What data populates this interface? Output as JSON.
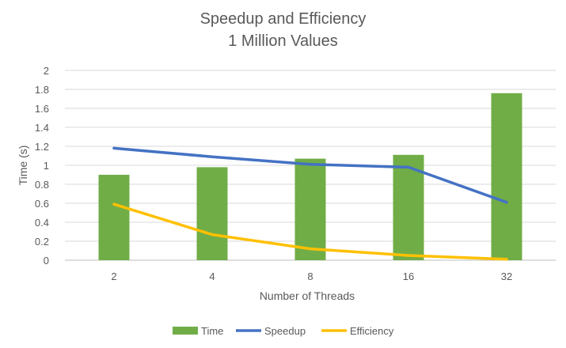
{
  "chart_data": {
    "type": "bar",
    "title": "Speedup and Efficiency",
    "subtitle": "1 Million Values",
    "xlabel": "Number of Threads",
    "ylabel": "Time (s)",
    "categories": [
      "2",
      "4",
      "8",
      "16",
      "32"
    ],
    "ylim": [
      0,
      2
    ],
    "yticks": [
      "0",
      "0.2",
      "0.4",
      "0.6",
      "0.8",
      "1",
      "1.2",
      "1.4",
      "1.6",
      "1.8",
      "2"
    ],
    "grid": true,
    "legend_position": "bottom",
    "series": [
      {
        "name": "Time",
        "kind": "bar",
        "color": "#70ad47",
        "values": [
          0.9,
          0.98,
          1.07,
          1.11,
          1.76
        ]
      },
      {
        "name": "Speedup",
        "kind": "line",
        "color": "#4472c4",
        "values": [
          1.18,
          1.09,
          1.01,
          0.98,
          0.61
        ]
      },
      {
        "name": "Efficiency",
        "kind": "line",
        "color": "#ffc000",
        "values": [
          0.59,
          0.27,
          0.12,
          0.05,
          0.01
        ]
      }
    ]
  }
}
